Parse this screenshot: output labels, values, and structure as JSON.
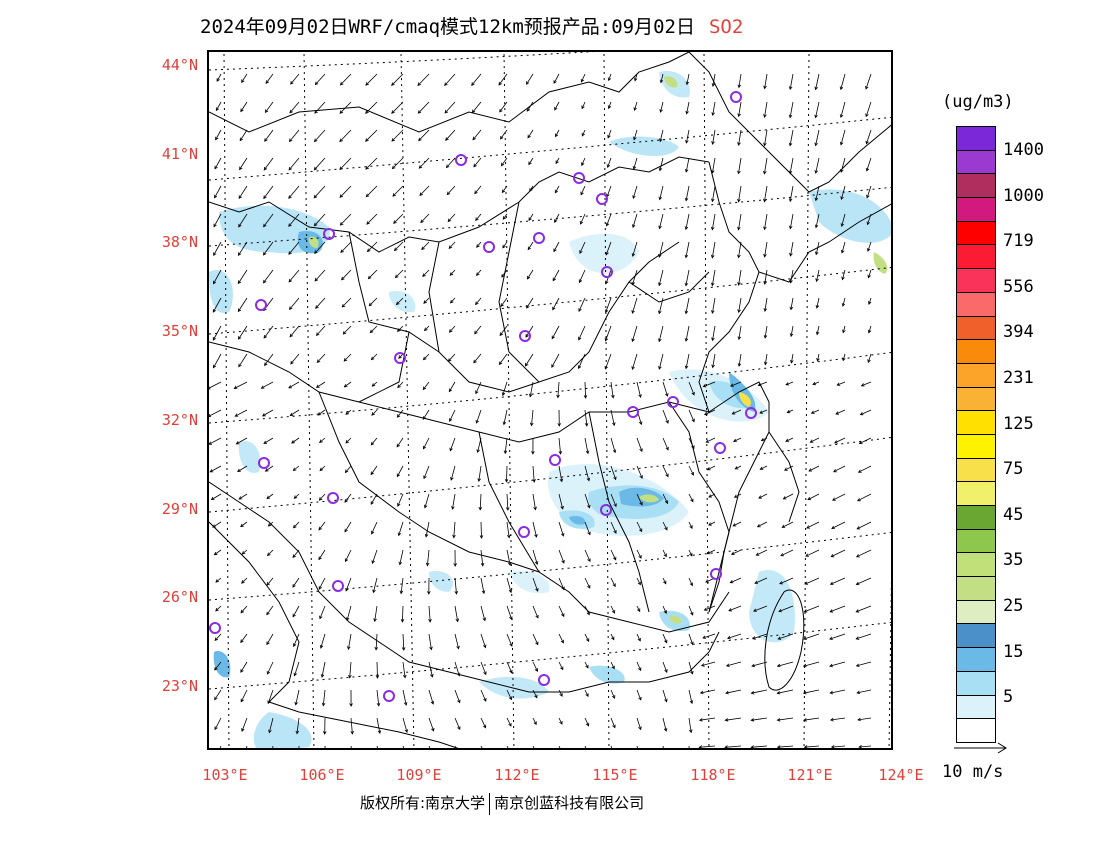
{
  "header": {
    "title": "2024年09月02日WRF/cmaq模式12km预报产品:09月02日",
    "pollutant": "SO2"
  },
  "map": {
    "lat_labels": [
      "44°N",
      "41°N",
      "38°N",
      "35°N",
      "32°N",
      "29°N",
      "26°N",
      "23°N"
    ],
    "lon_labels": [
      "103°E",
      "106°E",
      "109°E",
      "112°E",
      "115°E",
      "118°E",
      "121°E",
      "124°E"
    ],
    "lon_range": [
      103,
      124
    ],
    "lat_range": [
      21,
      44.5
    ],
    "marker_color": "#8a2be2",
    "city_markers_count": 28
  },
  "legend": {
    "units": "(ug/m3)",
    "colors": [
      "#ffffff",
      "#dcf2fb",
      "#a9dff5",
      "#6ab9e6",
      "#4b90c8",
      "#dfeec0",
      "#c2df84",
      "#c1e07a",
      "#8dc84c",
      "#6aa632",
      "#f0f06a",
      "#f7e04a",
      "#fff200",
      "#ffe000",
      "#f9b234",
      "#fca42a",
      "#f98a0a",
      "#f0602a",
      "#fa6a6a",
      "#f9335a",
      "#fb1b33",
      "#ff0000",
      "#d21a7e",
      "#b02e5e",
      "#9a3ad0",
      "#7a28d8"
    ],
    "labels": [
      "5",
      "15",
      "25",
      "35",
      "45",
      "75",
      "125",
      "231",
      "394",
      "556",
      "719",
      "1000",
      "1400"
    ],
    "vector_scale_label": "10 m/s"
  },
  "footer": {
    "copyright": "版权所有:南京大学",
    "company": "南京创蓝科技有限公司"
  }
}
